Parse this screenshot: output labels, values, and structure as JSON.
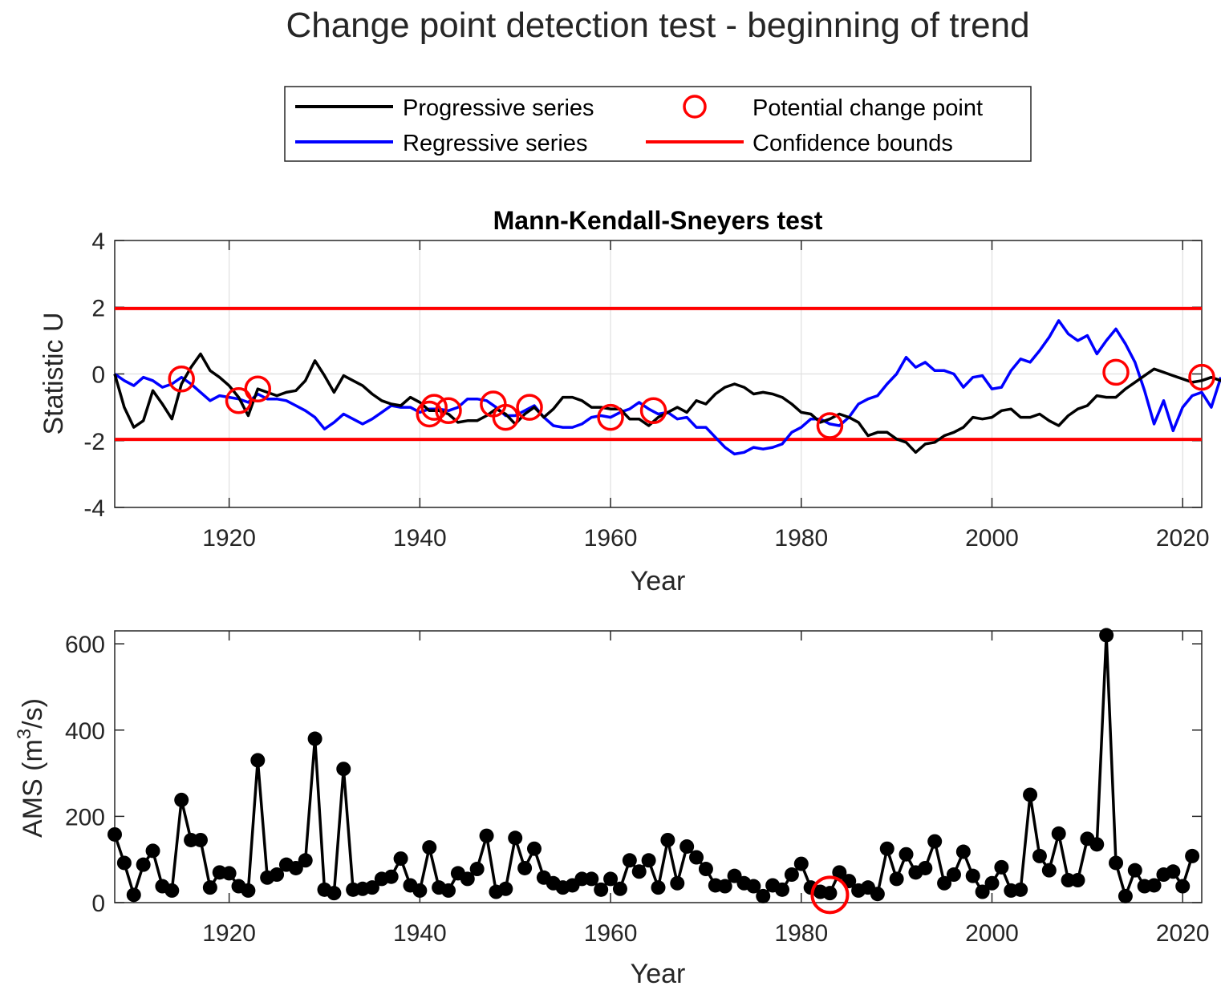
{
  "figure_title": "Change point detection test - beginning of trend",
  "legend": {
    "items": [
      {
        "label": "Progressive series",
        "color": "#000000",
        "marker": "line"
      },
      {
        "label": "Regressive series",
        "color": "#0000ff",
        "marker": "line"
      },
      {
        "label": "Potential change point",
        "color": "#ff0000",
        "marker": "circle"
      },
      {
        "label": "Confidence bounds",
        "color": "#ff0000",
        "marker": "line"
      }
    ]
  },
  "chart_data": [
    {
      "type": "line",
      "title": "Mann-Kendall-Sneyers test",
      "xlabel": "Year",
      "ylabel": "Statistic U",
      "xlim": [
        1908,
        2022
      ],
      "ylim": [
        -4,
        4
      ],
      "xticks": [
        1920,
        1940,
        1960,
        1980,
        2000,
        2020
      ],
      "yticks": [
        -4,
        -2,
        0,
        2,
        4
      ],
      "grid": true,
      "x_start": 1908,
      "series": [
        {
          "name": "Progressive series",
          "color": "#000000",
          "values": [
            0.0,
            -1.0,
            -1.6,
            -1.4,
            -0.5,
            -0.9,
            -1.35,
            -0.3,
            0.2,
            0.6,
            0.1,
            -0.1,
            -0.35,
            -0.7,
            -1.25,
            -0.45,
            -0.55,
            -0.65,
            -0.55,
            -0.5,
            -0.2,
            0.4,
            -0.05,
            -0.55,
            -0.05,
            -0.2,
            -0.35,
            -0.6,
            -0.8,
            -0.9,
            -0.95,
            -0.7,
            -0.85,
            -1.1,
            -1.1,
            -1.2,
            -1.45,
            -1.4,
            -1.4,
            -1.25,
            -1.05,
            -1.2,
            -1.5,
            -1.2,
            -1.0,
            -1.3,
            -1.05,
            -0.7,
            -0.7,
            -0.8,
            -1.0,
            -1.0,
            -1.05,
            -1.05,
            -1.35,
            -1.35,
            -1.55,
            -1.3,
            -1.15,
            -1.0,
            -1.15,
            -0.8,
            -0.9,
            -0.6,
            -0.4,
            -0.3,
            -0.4,
            -0.6,
            -0.55,
            -0.6,
            -0.7,
            -0.9,
            -1.15,
            -1.2,
            -1.45,
            -1.35,
            -1.2,
            -1.3,
            -1.45,
            -1.85,
            -1.75,
            -1.75,
            -1.95,
            -2.05,
            -2.35,
            -2.1,
            -2.05,
            -1.85,
            -1.75,
            -1.6,
            -1.3,
            -1.35,
            -1.3,
            -1.1,
            -1.05,
            -1.3,
            -1.3,
            -1.2,
            -1.4,
            -1.55,
            -1.25,
            -1.05,
            -0.95,
            -0.65,
            -0.7,
            -0.7,
            -0.45,
            -0.25,
            -0.05,
            0.15,
            0.05,
            -0.05,
            -0.15,
            -0.25,
            -0.2,
            -0.1,
            -0.2,
            -0.1
          ]
        },
        {
          "name": "Regressive series",
          "color": "#0000ff",
          "values": [
            0.0,
            -0.2,
            -0.35,
            -0.1,
            -0.2,
            -0.4,
            -0.3,
            -0.1,
            -0.3,
            -0.55,
            -0.8,
            -0.65,
            -0.7,
            -0.75,
            -0.85,
            -0.6,
            -0.75,
            -0.75,
            -0.8,
            -0.95,
            -1.1,
            -1.3,
            -1.65,
            -1.45,
            -1.2,
            -1.35,
            -1.5,
            -1.35,
            -1.15,
            -0.95,
            -1.0,
            -1.0,
            -1.15,
            -1.05,
            -1.05,
            -1.1,
            -1.0,
            -0.75,
            -0.75,
            -0.8,
            -1.0,
            -1.25,
            -1.25,
            -1.1,
            -0.95,
            -1.3,
            -1.55,
            -1.6,
            -1.6,
            -1.5,
            -1.3,
            -1.25,
            -1.3,
            -1.15,
            -1.05,
            -0.85,
            -1.05,
            -1.2,
            -1.15,
            -1.35,
            -1.3,
            -1.6,
            -1.6,
            -1.9,
            -2.2,
            -2.4,
            -2.35,
            -2.2,
            -2.25,
            -2.2,
            -2.1,
            -1.75,
            -1.6,
            -1.35,
            -1.35,
            -1.5,
            -1.55,
            -1.3,
            -0.9,
            -0.75,
            -0.65,
            -0.3,
            0.0,
            0.5,
            0.2,
            0.35,
            0.1,
            0.1,
            0.0,
            -0.4,
            -0.1,
            -0.05,
            -0.45,
            -0.4,
            0.1,
            0.45,
            0.35,
            0.7,
            1.1,
            1.6,
            1.2,
            1.0,
            1.15,
            0.6,
            1.0,
            1.35,
            0.9,
            0.35,
            -0.5,
            -1.5,
            -0.8,
            -1.7,
            -1.0,
            -0.65,
            -0.55,
            -1.0,
            -0.1
          ]
        },
        {
          "name": "Confidence bounds",
          "color": "#ff0000",
          "values": [
            1.96,
            -1.96
          ]
        }
      ],
      "change_points": [
        {
          "year": 1915,
          "u": -0.15
        },
        {
          "year": 1921,
          "u": -0.8
        },
        {
          "year": 1923,
          "u": -0.45
        },
        {
          "year": 1941,
          "u": -1.2
        },
        {
          "year": 1941.5,
          "u": -1.0
        },
        {
          "year": 1943,
          "u": -1.1
        },
        {
          "year": 1947.7,
          "u": -0.9
        },
        {
          "year": 1949,
          "u": -1.3
        },
        {
          "year": 1951.5,
          "u": -1.0
        },
        {
          "year": 1960,
          "u": -1.3
        },
        {
          "year": 1964.5,
          "u": -1.1
        },
        {
          "year": 1983,
          "u": -1.55
        },
        {
          "year": 2013,
          "u": 0.05
        },
        {
          "year": 2022,
          "u": -0.1
        }
      ]
    },
    {
      "type": "line",
      "xlabel": "Year",
      "ylabel": "AMS (m³/s)",
      "ylabel_parts": {
        "pre": "AMS (m",
        "sup": "3",
        "post": "/s)"
      },
      "xlim": [
        1908,
        2022
      ],
      "ylim": [
        0,
        630
      ],
      "xticks": [
        1920,
        1940,
        1960,
        1980,
        2000,
        2020
      ],
      "yticks": [
        0,
        200,
        400,
        600
      ],
      "grid": false,
      "x_start": 1908,
      "series": [
        {
          "name": "AMS",
          "color": "#000000",
          "values": [
            158,
            92,
            18,
            88,
            120,
            38,
            28,
            238,
            145,
            145,
            35,
            70,
            68,
            38,
            28,
            330,
            58,
            65,
            88,
            80,
            98,
            380,
            30,
            22,
            310,
            30,
            32,
            35,
            55,
            60,
            102,
            40,
            28,
            128,
            35,
            28,
            68,
            55,
            78,
            155,
            25,
            32,
            150,
            80,
            125,
            58,
            45,
            35,
            40,
            55,
            55,
            30,
            55,
            32,
            98,
            72,
            98,
            35,
            145,
            45,
            130,
            105,
            78,
            40,
            38,
            62,
            45,
            38,
            15,
            40,
            30,
            65,
            90,
            35,
            25,
            22,
            70,
            50,
            28,
            35,
            20,
            125,
            55,
            112,
            70,
            80,
            142,
            45,
            65,
            118,
            62,
            25,
            45,
            82,
            28,
            30,
            250,
            108,
            75,
            160,
            52,
            52,
            148,
            135,
            620,
            92,
            15,
            75,
            38,
            40,
            65,
            72,
            38,
            108
          ]
        }
      ],
      "change_points": [
        {
          "year": 1983,
          "value": 18
        }
      ]
    }
  ]
}
